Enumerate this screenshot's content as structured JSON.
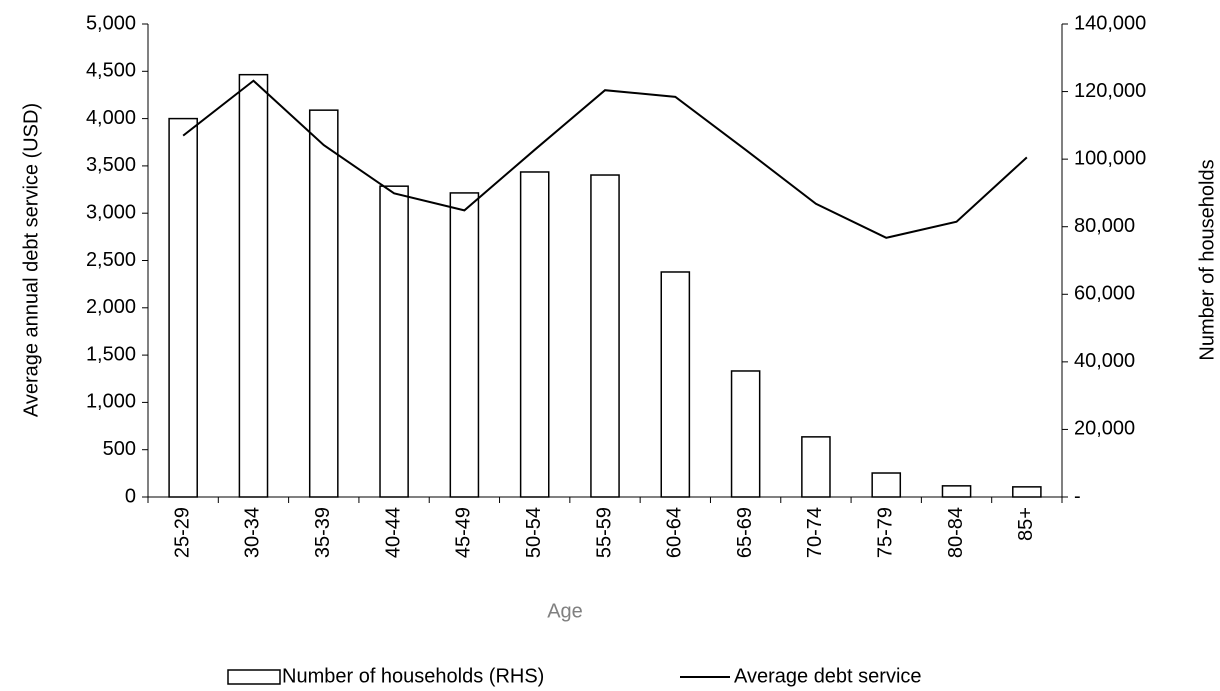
{
  "chart_data": {
    "type": "combo",
    "x_label": "Age",
    "y_label": "Average annual debt service (USD)",
    "y2_label": "Number of households",
    "categories": [
      "25-29",
      "30-34",
      "35-39",
      "40-44",
      "45-49",
      "50-54",
      "55-59",
      "60-64",
      "65-69",
      "70-74",
      "75-79",
      "80-84",
      "85+"
    ],
    "series": [
      {
        "name": "Number of households (RHS)",
        "type": "bar",
        "axis": "y2",
        "color": "#ffffff",
        "stroke": "#000000",
        "values": [
          112000,
          125000,
          114500,
          92000,
          90000,
          96200,
          95300,
          66600,
          37300,
          17800,
          7100,
          3300,
          3000
        ]
      },
      {
        "name": "Average debt service",
        "type": "line",
        "color": "#000000",
        "values": [
          3820,
          4400,
          3720,
          3210,
          3030,
          3670,
          4300,
          4230,
          3670,
          3100,
          2740,
          2910,
          3590
        ]
      }
    ],
    "ylim": [
      0,
      5000
    ],
    "yticks": [
      0,
      500,
      {
        "value": 1000,
        "label": "1,000"
      },
      {
        "value": 1500,
        "label": "1,500"
      },
      {
        "value": 2000,
        "label": "2,000"
      },
      {
        "value": 2500,
        "label": "2,500"
      },
      {
        "value": 3000,
        "label": "3,000"
      },
      {
        "value": 3500,
        "label": "3,500"
      },
      {
        "value": 4000,
        "label": "4,000"
      },
      {
        "value": 4500,
        "label": "4,500"
      },
      {
        "value": 5000,
        "label": "5,000"
      }
    ],
    "y2lim": [
      0,
      140000
    ],
    "y2ticks": [
      {
        "value": 0,
        "label": "-"
      },
      {
        "value": 20000,
        "label": "20,000"
      },
      {
        "value": 40000,
        "label": "40,000"
      },
      {
        "value": 60000,
        "label": "60,000"
      },
      {
        "value": 80000,
        "label": "80,000"
      },
      {
        "value": 100000,
        "label": "100,000"
      },
      {
        "value": 120000,
        "label": "120,000"
      },
      {
        "value": 140000,
        "label": "140,000"
      }
    ],
    "grid": false,
    "legend": "bottom"
  }
}
